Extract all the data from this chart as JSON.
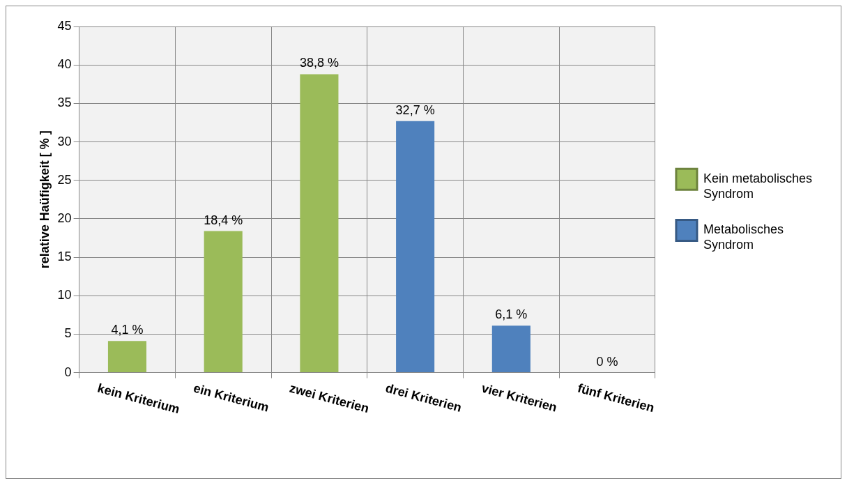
{
  "chart_data": {
    "type": "bar",
    "ylabel": "relative Haüfigkeit [ % ]",
    "categories": [
      "kein Kriterium",
      "ein Kriterium",
      "zwei Kriterien",
      "drei Kriterien",
      "vier Kriterien",
      "fünf Kriterien"
    ],
    "series": [
      {
        "name": "Kein metabolisches Syndrom",
        "color": "#9bbb59",
        "values": [
          4.1,
          18.4,
          38.8,
          null,
          null,
          null
        ],
        "value_labels": [
          "4,1 %",
          "18,4 %",
          "38,8 %",
          null,
          null,
          null
        ]
      },
      {
        "name": "Metabolisches Syndrom",
        "color": "#4f81bd",
        "values": [
          null,
          null,
          null,
          32.7,
          6.1,
          0
        ],
        "value_labels": [
          null,
          null,
          null,
          "32,7 %",
          "6,1 %",
          "0 %"
        ]
      }
    ],
    "ylim": [
      0,
      45
    ],
    "yticks": [
      0,
      5,
      10,
      15,
      20,
      25,
      30,
      35,
      40,
      45
    ],
    "grid": true,
    "legend": "right"
  }
}
